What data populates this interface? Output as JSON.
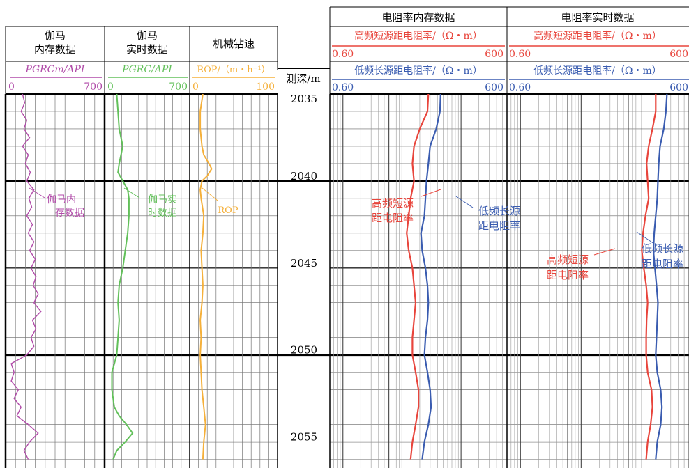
{
  "header": {
    "gamma_mem_title": [
      "伽马",
      "内存数据"
    ],
    "gamma_rt_title": [
      "伽马",
      "实时数据"
    ],
    "rop_title": "机械钻速",
    "depth_label": "测深/m",
    "res_mem_title": "电阻率内存数据",
    "res_rt_title": "电阻率实时数据",
    "res_hf_label": "高频短源距电阻率/（Ω・m）",
    "res_lf_label": "低频长源距电阻率/（Ω・m）",
    "res_min": "0.60",
    "res_max": "600",
    "gamma_mem_curve_label": "PGRCm/API",
    "gamma_rt_curve_label": "PGRC/API",
    "rop_curve_label": "ROP/（m・h⁻¹）",
    "gamma_min": "0",
    "gamma_max": "700",
    "rop_min": "0",
    "rop_max": "100"
  },
  "annotations": {
    "gamma_mem": [
      "伽马内",
      "存数据"
    ],
    "gamma_rt": [
      "伽马实",
      "时数据"
    ],
    "rop": "ROP",
    "hf_mem": [
      "高频短源",
      "距电阻率"
    ],
    "lf_mem": [
      "低频长源",
      "距电阻率"
    ],
    "hf_rt": [
      "高频短源",
      "距电阻率"
    ],
    "lf_rt": [
      "低频长源",
      "距电阻率"
    ]
  },
  "colors": {
    "gamma_mem": "#b04aa8",
    "gamma_rt": "#62c05a",
    "rop": "#f5b03a",
    "res_hf": "#e8453c",
    "res_lf": "#3a5cb0"
  },
  "chart_data": {
    "type": "line",
    "title": "",
    "depth_range": [
      2035,
      2056.5
    ],
    "depth_ticks": [
      2035,
      2040,
      2045,
      2050,
      2055
    ],
    "depth_unit": "m",
    "tracks": [
      {
        "name": "伽马内存数据",
        "curve": "PGRCm",
        "unit": "API",
        "range": [
          0,
          700
        ],
        "points": [
          [
            2035,
            120
          ],
          [
            2035.5,
            135
          ],
          [
            2036,
            110
          ],
          [
            2036.5,
            150
          ],
          [
            2037,
            130
          ],
          [
            2037.5,
            170
          ],
          [
            2038,
            120
          ],
          [
            2038.5,
            160
          ],
          [
            2039,
            140
          ],
          [
            2039.5,
            175
          ],
          [
            2040,
            150
          ],
          [
            2040.5,
            200
          ],
          [
            2041,
            165
          ],
          [
            2041.5,
            185
          ],
          [
            2042,
            150
          ],
          [
            2042.5,
            190
          ],
          [
            2043,
            160
          ],
          [
            2043.5,
            200
          ],
          [
            2044,
            170
          ],
          [
            2044.5,
            210
          ],
          [
            2045,
            180
          ],
          [
            2045.5,
            215
          ],
          [
            2046,
            195
          ],
          [
            2046.5,
            230
          ],
          [
            2047,
            200
          ],
          [
            2047.5,
            250
          ],
          [
            2048,
            190
          ],
          [
            2048.5,
            215
          ],
          [
            2049,
            180
          ],
          [
            2049.5,
            200
          ],
          [
            2050,
            150
          ],
          [
            2050.5,
            40
          ],
          [
            2051,
            60
          ],
          [
            2051.5,
            40
          ],
          [
            2052,
            90
          ],
          [
            2052.5,
            60
          ],
          [
            2053,
            110
          ],
          [
            2053.5,
            80
          ],
          [
            2054,
            160
          ],
          [
            2054.5,
            230
          ],
          [
            2055,
            170
          ],
          [
            2055.5,
            130
          ],
          [
            2056,
            160
          ]
        ]
      },
      {
        "name": "伽马实时数据",
        "curve": "PGRC",
        "unit": "API",
        "range": [
          0,
          700
        ],
        "points": [
          [
            2035,
            100
          ],
          [
            2036,
            110
          ],
          [
            2037,
            120
          ],
          [
            2038,
            150
          ],
          [
            2039,
            120
          ],
          [
            2039.5,
            110
          ],
          [
            2040,
            150
          ],
          [
            2040.5,
            190
          ],
          [
            2041,
            200
          ],
          [
            2042,
            200
          ],
          [
            2043,
            190
          ],
          [
            2044,
            170
          ],
          [
            2045,
            150
          ],
          [
            2046,
            120
          ],
          [
            2047,
            110
          ],
          [
            2048,
            120
          ],
          [
            2049,
            110
          ],
          [
            2050,
            100
          ],
          [
            2051,
            60
          ],
          [
            2052,
            60
          ],
          [
            2053,
            80
          ],
          [
            2053.5,
            120
          ],
          [
            2054,
            180
          ],
          [
            2054.5,
            230
          ],
          [
            2055,
            170
          ],
          [
            2055.5,
            100
          ],
          [
            2056,
            70
          ]
        ]
      },
      {
        "name": "机械钻速",
        "curve": "ROP",
        "unit": "m·h⁻¹",
        "range": [
          0,
          100
        ],
        "points": [
          [
            2035,
            15
          ],
          [
            2036,
            12
          ],
          [
            2037,
            12
          ],
          [
            2038,
            14
          ],
          [
            2038.5,
            16
          ],
          [
            2039,
            22
          ],
          [
            2039.3,
            25
          ],
          [
            2039.7,
            20
          ],
          [
            2040,
            14
          ],
          [
            2040.5,
            12
          ],
          [
            2041,
            13
          ],
          [
            2042,
            16
          ],
          [
            2043,
            15
          ],
          [
            2044,
            13
          ],
          [
            2045,
            14
          ],
          [
            2046,
            15
          ],
          [
            2047,
            14
          ],
          [
            2048,
            12
          ],
          [
            2049,
            13
          ],
          [
            2050,
            12
          ],
          [
            2051,
            13
          ],
          [
            2052,
            14
          ],
          [
            2053,
            16
          ],
          [
            2054,
            18
          ],
          [
            2055,
            16
          ],
          [
            2056,
            15
          ]
        ]
      },
      {
        "name": "电阻率内存数据",
        "scale": "log",
        "unit": "Ω·m",
        "range": [
          0.6,
          600
        ],
        "series": [
          {
            "name": "高频短源距电阻率",
            "points": [
              [
                2035,
                28
              ],
              [
                2036,
                27
              ],
              [
                2037,
                20
              ],
              [
                2038,
                16
              ],
              [
                2039,
                15
              ],
              [
                2040,
                16
              ],
              [
                2041,
                14
              ],
              [
                2042,
                13
              ],
              [
                2043,
                12
              ],
              [
                2044,
                13
              ],
              [
                2045,
                15
              ],
              [
                2046,
                16
              ],
              [
                2047,
                17
              ],
              [
                2048,
                16
              ],
              [
                2049,
                15
              ],
              [
                2050,
                15
              ],
              [
                2051,
                17
              ],
              [
                2052,
                19
              ],
              [
                2053,
                19
              ],
              [
                2054,
                17
              ],
              [
                2055,
                15
              ],
              [
                2056,
                14
              ]
            ]
          },
          {
            "name": "低频长源距电阻率",
            "points": [
              [
                2035,
                45
              ],
              [
                2036,
                44
              ],
              [
                2037,
                38
              ],
              [
                2038,
                30
              ],
              [
                2039,
                28
              ],
              [
                2040,
                26
              ],
              [
                2041,
                25
              ],
              [
                2042,
                24
              ],
              [
                2043,
                21
              ],
              [
                2044,
                22
              ],
              [
                2045,
                25
              ],
              [
                2046,
                27
              ],
              [
                2047,
                28
              ],
              [
                2048,
                27
              ],
              [
                2049,
                25
              ],
              [
                2050,
                24
              ],
              [
                2051,
                27
              ],
              [
                2052,
                30
              ],
              [
                2053,
                31
              ],
              [
                2054,
                28
              ],
              [
                2055,
                24
              ],
              [
                2056,
                22
              ]
            ]
          }
        ]
      },
      {
        "name": "电阻率实时数据",
        "scale": "log",
        "unit": "Ω·m",
        "range": [
          0.6,
          600
        ],
        "series": [
          {
            "name": "高频短源距电阻率",
            "points": [
              [
                2035,
                170
              ],
              [
                2036,
                170
              ],
              [
                2037,
                150
              ],
              [
                2038,
                130
              ],
              [
                2039,
                120
              ],
              [
                2040,
                125
              ],
              [
                2041,
                130
              ],
              [
                2042,
                115
              ],
              [
                2043,
                105
              ],
              [
                2044,
                100
              ],
              [
                2045,
                108
              ],
              [
                2046,
                118
              ],
              [
                2047,
                125
              ],
              [
                2048,
                120
              ],
              [
                2049,
                118
              ],
              [
                2050,
                118
              ],
              [
                2051,
                125
              ],
              [
                2052,
                145
              ],
              [
                2053,
                150
              ],
              [
                2054,
                140
              ],
              [
                2055,
                125
              ],
              [
                2056,
                118
              ]
            ]
          },
          {
            "name": "低频长源距电阻率",
            "points": [
              [
                2035,
                260
              ],
              [
                2036,
                250
              ],
              [
                2037,
                230
              ],
              [
                2038,
                200
              ],
              [
                2039,
                190
              ],
              [
                2040,
                185
              ],
              [
                2041,
                180
              ],
              [
                2042,
                170
              ],
              [
                2043,
                160
              ],
              [
                2044,
                155
              ],
              [
                2045,
                165
              ],
              [
                2046,
                175
              ],
              [
                2047,
                185
              ],
              [
                2048,
                180
              ],
              [
                2049,
                175
              ],
              [
                2050,
                170
              ],
              [
                2051,
                180
              ],
              [
                2052,
                205
              ],
              [
                2053,
                215
              ],
              [
                2054,
                205
              ],
              [
                2055,
                180
              ],
              [
                2056,
                170
              ]
            ]
          }
        ]
      }
    ]
  }
}
